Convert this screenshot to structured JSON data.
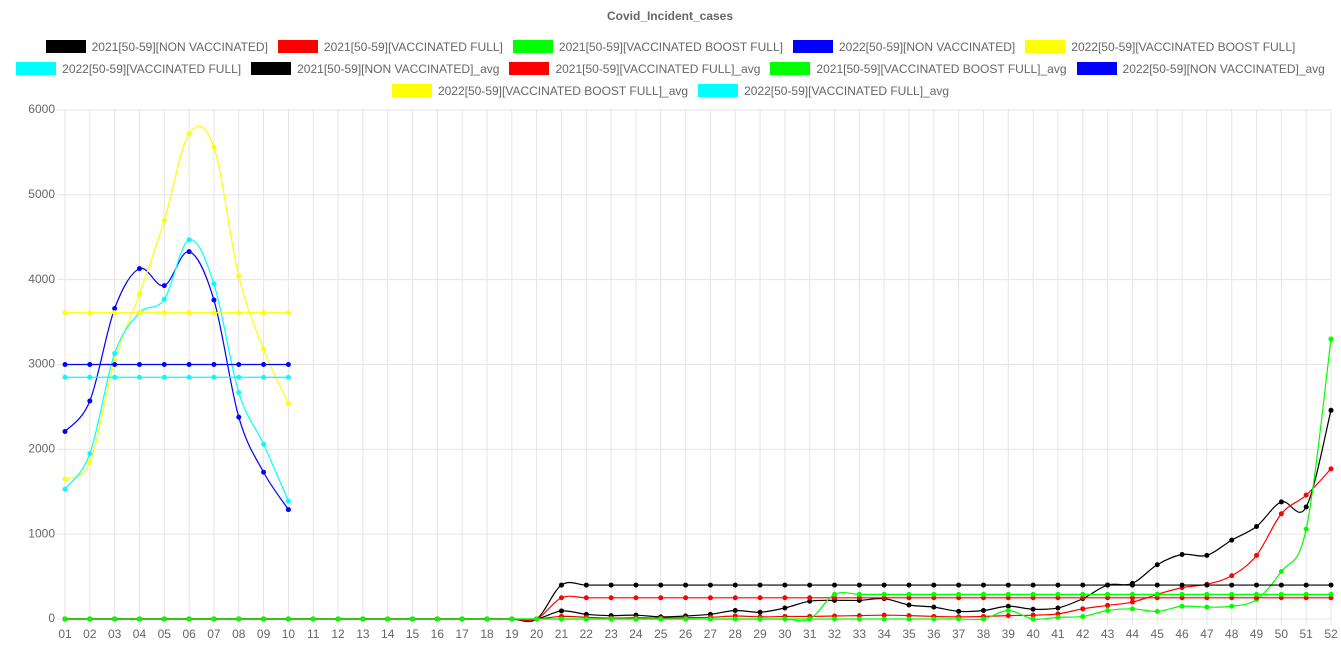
{
  "chart_data": {
    "type": "line",
    "title": "Covid_Incident_cases",
    "categories": [
      "01",
      "02",
      "03",
      "04",
      "05",
      "06",
      "07",
      "08",
      "09",
      "10",
      "11",
      "12",
      "13",
      "14",
      "15",
      "16",
      "17",
      "18",
      "19",
      "20",
      "21",
      "22",
      "23",
      "24",
      "25",
      "26",
      "27",
      "28",
      "29",
      "30",
      "31",
      "32",
      "33",
      "34",
      "35",
      "36",
      "37",
      "38",
      "39",
      "40",
      "41",
      "42",
      "43",
      "44",
      "45",
      "46",
      "47",
      "48",
      "49",
      "50",
      "51",
      "52"
    ],
    "ylim": [
      0,
      6000
    ],
    "yticks": [
      0,
      1000,
      2000,
      3000,
      4000,
      5000,
      6000
    ],
    "grid": true,
    "series": [
      {
        "name": "2021[50-59][NON VACCINATED]",
        "color": "#000000",
        "values": [
          0,
          0,
          0,
          0,
          0,
          0,
          0,
          0,
          0,
          0,
          0,
          0,
          0,
          0,
          0,
          0,
          0,
          0,
          0,
          0,
          95,
          55,
          40,
          45,
          25,
          35,
          55,
          100,
          80,
          130,
          210,
          220,
          220,
          240,
          165,
          140,
          90,
          100,
          150,
          115,
          130,
          240,
          400,
          420,
          640,
          760,
          750,
          930,
          1090,
          1380,
          1320,
          2460
        ]
      },
      {
        "name": "2021[50-59][VACCINATED FULL]",
        "color": "#ff0000",
        "values": [
          0,
          0,
          0,
          0,
          0,
          0,
          0,
          0,
          0,
          0,
          0,
          0,
          0,
          0,
          0,
          0,
          0,
          0,
          0,
          0,
          30,
          20,
          10,
          15,
          10,
          15,
          20,
          35,
          25,
          30,
          30,
          35,
          40,
          45,
          40,
          30,
          25,
          30,
          40,
          45,
          60,
          120,
          160,
          200,
          290,
          370,
          410,
          510,
          750,
          1240,
          1460,
          1770
        ]
      },
      {
        "name": "2021[50-59][VACCINATED BOOST FULL]",
        "color": "#00ff00",
        "values": [
          0,
          0,
          0,
          0,
          0,
          0,
          0,
          0,
          0,
          0,
          0,
          0,
          0,
          0,
          0,
          0,
          0,
          0,
          0,
          0,
          0,
          0,
          0,
          0,
          0,
          0,
          0,
          0,
          0,
          0,
          0,
          0,
          0,
          0,
          0,
          0,
          0,
          0,
          100,
          0,
          20,
          30,
          100,
          120,
          90,
          150,
          140,
          150,
          230,
          560,
          1060,
          3300
        ]
      },
      {
        "name": "2022[50-59][NON VACCINATED]",
        "color": "#0000ff",
        "values": [
          2210,
          2570,
          3660,
          4130,
          3930,
          4330,
          3760,
          2380,
          1730,
          1290,
          null,
          null,
          null,
          null,
          null,
          null,
          null,
          null,
          null,
          null,
          null,
          null,
          null,
          null,
          null,
          null,
          null,
          null,
          null,
          null,
          null,
          null,
          null,
          null,
          null,
          null,
          null,
          null,
          null,
          null,
          null,
          null,
          null,
          null,
          null,
          null,
          null,
          null,
          null,
          null,
          null,
          null
        ]
      },
      {
        "name": "2022[50-59][VACCINATED BOOST FULL]",
        "color": "#ffff00",
        "values": [
          1650,
          1850,
          3050,
          3830,
          4700,
          5720,
          5560,
          4040,
          3180,
          2540,
          null,
          null,
          null,
          null,
          null,
          null,
          null,
          null,
          null,
          null,
          null,
          null,
          null,
          null,
          null,
          null,
          null,
          null,
          null,
          null,
          null,
          null,
          null,
          null,
          null,
          null,
          null,
          null,
          null,
          null,
          null,
          null,
          null,
          null,
          null,
          null,
          null,
          null,
          null,
          null,
          null,
          null
        ]
      },
      {
        "name": "2022[50-59][VACCINATED FULL]",
        "color": "#00ffff",
        "values": [
          1530,
          1950,
          3130,
          3610,
          3770,
          4470,
          3950,
          2670,
          2060,
          1390,
          null,
          null,
          null,
          null,
          null,
          null,
          null,
          null,
          null,
          null,
          null,
          null,
          null,
          null,
          null,
          null,
          null,
          null,
          null,
          null,
          null,
          null,
          null,
          null,
          null,
          null,
          null,
          null,
          null,
          null,
          null,
          null,
          null,
          null,
          null,
          null,
          null,
          null,
          null,
          null,
          null,
          null
        ]
      },
      {
        "name": "2021[50-59][NON VACCINATED]_avg",
        "color": "#000000",
        "values": [
          0,
          0,
          0,
          0,
          0,
          0,
          0,
          0,
          0,
          0,
          0,
          0,
          0,
          0,
          0,
          0,
          0,
          0,
          0,
          0,
          400,
          400,
          400,
          400,
          400,
          400,
          400,
          400,
          400,
          400,
          400,
          400,
          400,
          400,
          400,
          400,
          400,
          400,
          400,
          400,
          400,
          400,
          400,
          400,
          400,
          400,
          400,
          400,
          400,
          400,
          400,
          400
        ]
      },
      {
        "name": "2021[50-59][VACCINATED FULL]_avg",
        "color": "#ff0000",
        "values": [
          0,
          0,
          0,
          0,
          0,
          0,
          0,
          0,
          0,
          0,
          0,
          0,
          0,
          0,
          0,
          0,
          0,
          0,
          0,
          0,
          250,
          250,
          250,
          250,
          250,
          250,
          250,
          250,
          250,
          250,
          250,
          250,
          250,
          250,
          250,
          250,
          250,
          250,
          250,
          250,
          250,
          250,
          250,
          250,
          250,
          250,
          250,
          250,
          250,
          250,
          250,
          250
        ]
      },
      {
        "name": "2021[50-59][VACCINATED BOOST FULL]_avg",
        "color": "#00ff00",
        "values": [
          0,
          0,
          0,
          0,
          0,
          0,
          0,
          0,
          0,
          0,
          0,
          0,
          0,
          0,
          0,
          0,
          0,
          0,
          0,
          0,
          0,
          0,
          0,
          0,
          0,
          0,
          0,
          0,
          0,
          0,
          0,
          290,
          290,
          290,
          290,
          290,
          290,
          290,
          290,
          290,
          290,
          290,
          290,
          290,
          290,
          290,
          290,
          290,
          290,
          290,
          290,
          290
        ]
      },
      {
        "name": "2022[50-59][NON VACCINATED]_avg",
        "color": "#0000ff",
        "values": [
          3000,
          3000,
          3000,
          3000,
          3000,
          3000,
          3000,
          3000,
          3000,
          3000,
          null,
          null,
          null,
          null,
          null,
          null,
          null,
          null,
          null,
          null,
          null,
          null,
          null,
          null,
          null,
          null,
          null,
          null,
          null,
          null,
          null,
          null,
          null,
          null,
          null,
          null,
          null,
          null,
          null,
          null,
          null,
          null,
          null,
          null,
          null,
          null,
          null,
          null,
          null,
          null,
          null,
          null
        ]
      },
      {
        "name": "2022[50-59][VACCINATED BOOST FULL]_avg",
        "color": "#ffff00",
        "values": [
          3610,
          3610,
          3610,
          3610,
          3610,
          3610,
          3610,
          3610,
          3610,
          3610,
          null,
          null,
          null,
          null,
          null,
          null,
          null,
          null,
          null,
          null,
          null,
          null,
          null,
          null,
          null,
          null,
          null,
          null,
          null,
          null,
          null,
          null,
          null,
          null,
          null,
          null,
          null,
          null,
          null,
          null,
          null,
          null,
          null,
          null,
          null,
          null,
          null,
          null,
          null,
          null,
          null,
          null
        ]
      },
      {
        "name": "2022[50-59][VACCINATED FULL]_avg",
        "color": "#00ffff",
        "values": [
          2850,
          2850,
          2850,
          2850,
          2850,
          2850,
          2850,
          2850,
          2850,
          2850,
          null,
          null,
          null,
          null,
          null,
          null,
          null,
          null,
          null,
          null,
          null,
          null,
          null,
          null,
          null,
          null,
          null,
          null,
          null,
          null,
          null,
          null,
          null,
          null,
          null,
          null,
          null,
          null,
          null,
          null,
          null,
          null,
          null,
          null,
          null,
          null,
          null,
          null,
          null,
          null,
          null,
          null
        ]
      }
    ]
  }
}
